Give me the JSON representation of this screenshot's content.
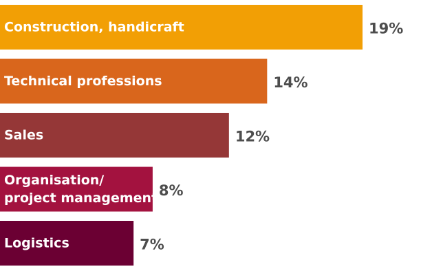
{
  "chart_data": {
    "type": "bar",
    "orientation": "horizontal",
    "categories": [
      [
        "Construction, handicraft"
      ],
      [
        "Technical professions"
      ],
      [
        "Sales"
      ],
      [
        "Organisation/",
        "project management"
      ],
      [
        "Logistics"
      ]
    ],
    "values": [
      19,
      14,
      12,
      8,
      7
    ],
    "value_labels": [
      "19%",
      "14%",
      "12%",
      "8%",
      "7%"
    ],
    "colors": [
      "#f29f05",
      "#d9661c",
      "#953737",
      "#a3123f",
      "#6b0033"
    ],
    "xlim": [
      0,
      22
    ],
    "grid": false,
    "title": "",
    "xlabel": "",
    "ylabel": ""
  }
}
